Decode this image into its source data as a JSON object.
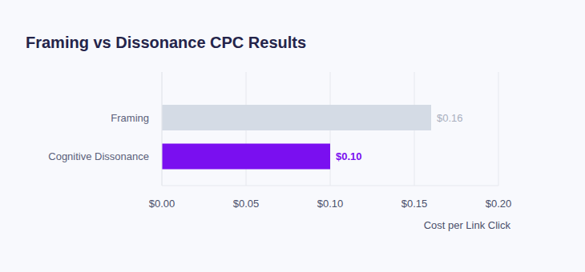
{
  "chart_data": {
    "type": "bar",
    "title": "Framing vs Dissonance CPC Results",
    "x_label": "Cost per Link Click",
    "categories": [
      "Framing",
      "Cognitive Dissonance"
    ],
    "values": [
      0.16,
      0.1
    ],
    "value_labels": [
      "$0.16",
      "$0.10"
    ],
    "colors": [
      "#d4dbe5",
      "#7a0ff0"
    ],
    "orientation": "horizontal",
    "xlim": [
      0,
      0.2
    ],
    "xticks": [
      {
        "value": 0,
        "label": "$0.00"
      },
      {
        "value": 0.05,
        "label": "$0.05"
      },
      {
        "value": 0.1,
        "label": "$0.10"
      },
      {
        "value": 0.15,
        "label": "$0.15"
      },
      {
        "value": 0.2,
        "label": "$0.20"
      }
    ],
    "grid": true,
    "data_labels": true
  }
}
